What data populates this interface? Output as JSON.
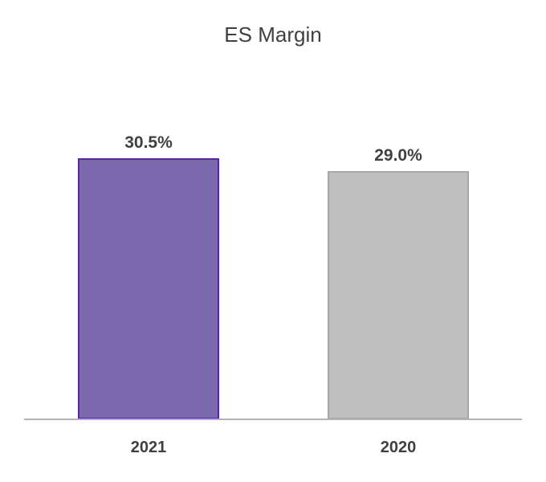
{
  "title": "ES Margin",
  "chart_data": {
    "type": "bar",
    "title": "ES Margin",
    "categories": [
      "2021",
      "2020"
    ],
    "values": [
      30.5,
      29.0
    ],
    "value_labels": [
      "30.5%",
      "29.0%"
    ],
    "xlabel": "",
    "ylabel": "",
    "ylim": [
      0,
      32
    ],
    "grid": false,
    "legend": false,
    "bar_styles": [
      {
        "fill": "#7C6AAE",
        "border": "#5A21B5"
      },
      {
        "fill": "#BFBFBF",
        "border": "#A6A6A6"
      }
    ],
    "text_color": "#404040",
    "axis_line_color": "#B3B3B3"
  }
}
